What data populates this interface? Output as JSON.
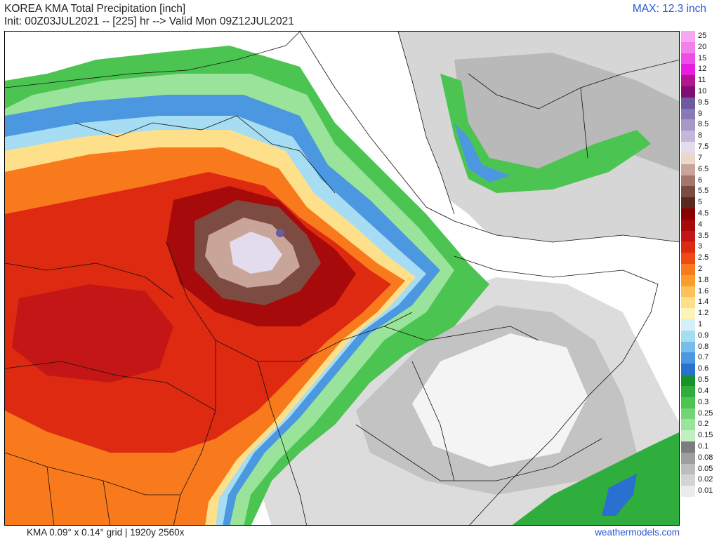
{
  "header": {
    "title": "KOREA KMA Total Precipitation [inch]",
    "init": "Init: 00Z03JUL2021 -- [225] hr --> Valid Mon 09Z12JUL2021",
    "max": "MAX: 12.3 inch"
  },
  "footer": {
    "grid": "KMA 0.09° x 0.14° grid | 1920y 2560x",
    "site": "weathermodels.com"
  },
  "colors": {
    "accent_text": "#2a57d8"
  },
  "legend": [
    {
      "label": "25",
      "color": "#f7a6f2"
    },
    {
      "label": "20",
      "color": "#f27fec"
    },
    {
      "label": "15",
      "color": "#ee4ee8"
    },
    {
      "label": "12",
      "color": "#e81be0"
    },
    {
      "label": "11",
      "color": "#b1168f"
    },
    {
      "label": "10",
      "color": "#7e0e6f"
    },
    {
      "label": "9.5",
      "color": "#6d5aa0"
    },
    {
      "label": "9",
      "color": "#8b79b6"
    },
    {
      "label": "8.5",
      "color": "#a698c9"
    },
    {
      "label": "8",
      "color": "#c2b8db"
    },
    {
      "label": "7.5",
      "color": "#e2dcec"
    },
    {
      "label": "7",
      "color": "#ebd7cc"
    },
    {
      "label": "6.5",
      "color": "#c9a499"
    },
    {
      "label": "6",
      "color": "#a4776c"
    },
    {
      "label": "5.5",
      "color": "#7c4c42"
    },
    {
      "label": "5",
      "color": "#5a2a20"
    },
    {
      "label": "4.5",
      "color": "#8b0000"
    },
    {
      "label": "4",
      "color": "#a70a0a"
    },
    {
      "label": "3.5",
      "color": "#c41616"
    },
    {
      "label": "3",
      "color": "#dd2a10"
    },
    {
      "label": "2.5",
      "color": "#ee4a14"
    },
    {
      "label": "2",
      "color": "#f87a1c"
    },
    {
      "label": "1.8",
      "color": "#fb9d2a"
    },
    {
      "label": "1.6",
      "color": "#fdc15a"
    },
    {
      "label": "1.4",
      "color": "#fee08a"
    },
    {
      "label": "1.2",
      "color": "#fff4b8"
    },
    {
      "label": "1",
      "color": "#d3f1f7"
    },
    {
      "label": "0.9",
      "color": "#a6ddf3"
    },
    {
      "label": "0.8",
      "color": "#77bdec"
    },
    {
      "label": "0.7",
      "color": "#4c98e0"
    },
    {
      "label": "0.6",
      "color": "#2a70d0"
    },
    {
      "label": "0.5",
      "color": "#17932d"
    },
    {
      "label": "0.4",
      "color": "#2fae3e"
    },
    {
      "label": "0.3",
      "color": "#4cc452"
    },
    {
      "label": "0.25",
      "color": "#73d574"
    },
    {
      "label": "0.2",
      "color": "#9ae39a"
    },
    {
      "label": "0.15",
      "color": "#c2efc0"
    },
    {
      "label": "0.1",
      "color": "#7d7d7d"
    },
    {
      "label": "0.08",
      "color": "#9e9e9e"
    },
    {
      "label": "0.05",
      "color": "#bcbcbc"
    },
    {
      "label": "0.02",
      "color": "#d3d3d3"
    },
    {
      "label": "0.01",
      "color": "#ebebeb"
    }
  ]
}
